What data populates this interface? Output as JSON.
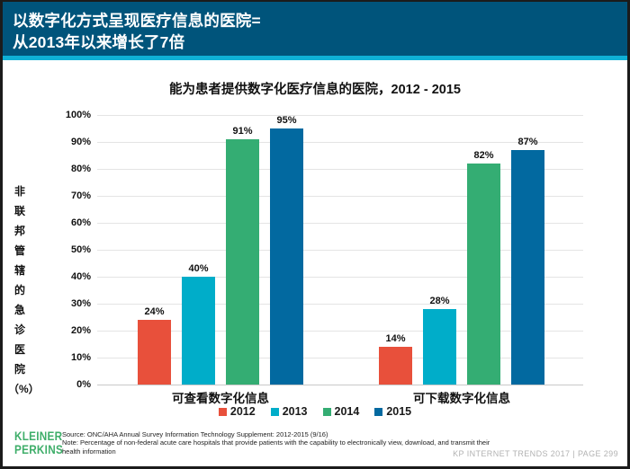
{
  "header": {
    "title_line1": "以数字化方式呈现医疗信息的医院=",
    "title_line2": "从2013年以来增长了7倍"
  },
  "chart": {
    "title": "能为患者提供数字化医疗信息的医院，2012 - 2015"
  },
  "chart_data": {
    "type": "bar",
    "title": "能为患者提供数字化医疗信息的医院，2012 - 2015",
    "categories": [
      "可查看数字化信息",
      "可下载数字化信息"
    ],
    "series": [
      {
        "name": "2012",
        "color": "#e8503b",
        "values": [
          24,
          14
        ]
      },
      {
        "name": "2013",
        "color": "#00adc9",
        "values": [
          40,
          28
        ]
      },
      {
        "name": "2014",
        "color": "#34ad73",
        "values": [
          91,
          82
        ]
      },
      {
        "name": "2015",
        "color": "#0269a0",
        "values": [
          95,
          87
        ]
      }
    ],
    "data_labels": [
      [
        "24%",
        "40%",
        "91%",
        "95%"
      ],
      [
        "14%",
        "28%",
        "82%",
        "87%"
      ]
    ],
    "ylabel": "非联邦管辖的急诊医院（%）",
    "ylabel_chars": [
      "非",
      "联",
      "邦",
      "管",
      "辖",
      "的",
      "急",
      "诊",
      "医",
      "院",
      "（%）"
    ],
    "yticks": [
      "100%",
      "90%",
      "80%",
      "70%",
      "60%",
      "50%",
      "40%",
      "30%",
      "20%",
      "10%",
      "0%"
    ],
    "ylim": [
      0,
      100
    ],
    "grid": true,
    "legend_position": "bottom"
  },
  "footer": {
    "logo_line1": "KLEINER",
    "logo_line2": "PERKINS",
    "source_lines": [
      "Source: ONC/AHA Annual Survey Information Technology Supplement: 2012-2015 (9/16)",
      "Note: Percentage of non-federal acute care hospitals that provide patients with the capability to electronically view, download, and transmit their",
      "health information"
    ],
    "page_info": "KP INTERNET TRENDS 2017   |   PAGE 299"
  },
  "colors": {
    "header_bg": "#00547b",
    "accent_stripe": "#0fb0d5",
    "kp_green": "#3fae6a"
  }
}
